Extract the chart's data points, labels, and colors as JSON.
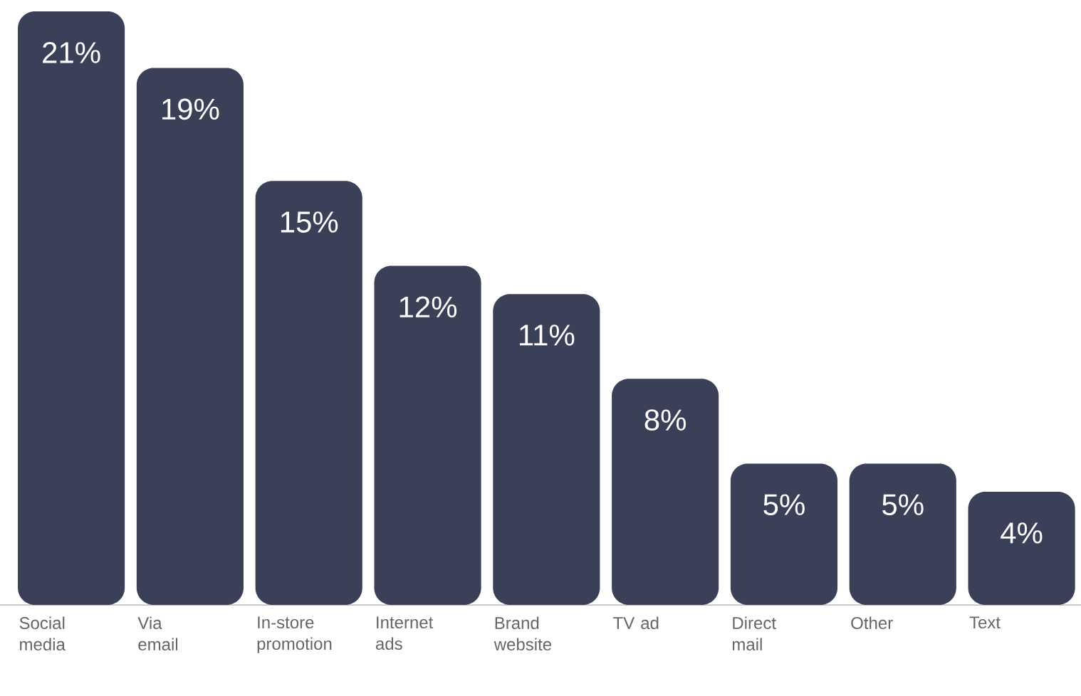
{
  "chart_data": {
    "type": "bar",
    "categories": [
      "Social media",
      "Via email",
      "In-store promotion",
      "Internet ads",
      "Brand website",
      "TV ad",
      "Direct mail",
      "Other",
      "Text"
    ],
    "values": [
      21,
      19,
      15,
      12,
      11,
      8,
      5,
      5,
      4
    ],
    "value_labels": [
      "21%",
      "19%",
      "15%",
      "12%",
      "11%",
      "8%",
      "5%",
      "5%",
      "4%"
    ],
    "color": "#3b4059"
  }
}
